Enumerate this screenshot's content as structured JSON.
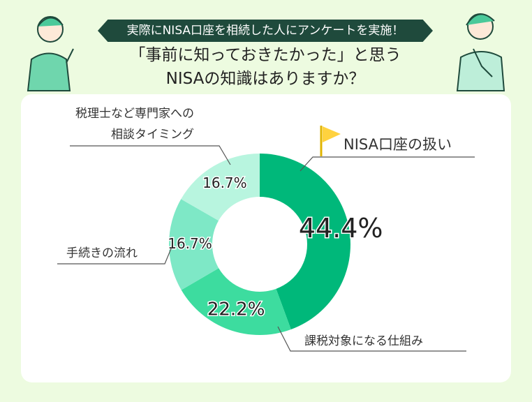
{
  "chart_data": {
    "type": "donut",
    "subtitle": "実際にNISA口座を相続した人にアンケートを実施！",
    "title": "「事前に知っておきたかった」と思う\nNISAの知識はありますか？",
    "categories": [
      "NISA口座の扱い",
      "課税対象になる仕組み",
      "手続きの流れ",
      "税理士など専門家への\n相談タイミング"
    ],
    "values": [
      44.4,
      22.2,
      16.7,
      16.7
    ],
    "value_labels": [
      "44.4%",
      "22.2%",
      "16.7%",
      "16.7%"
    ],
    "colors": [
      "#00b87a",
      "#3ddc9f",
      "#7ee8c6",
      "#b8f5df"
    ]
  }
}
